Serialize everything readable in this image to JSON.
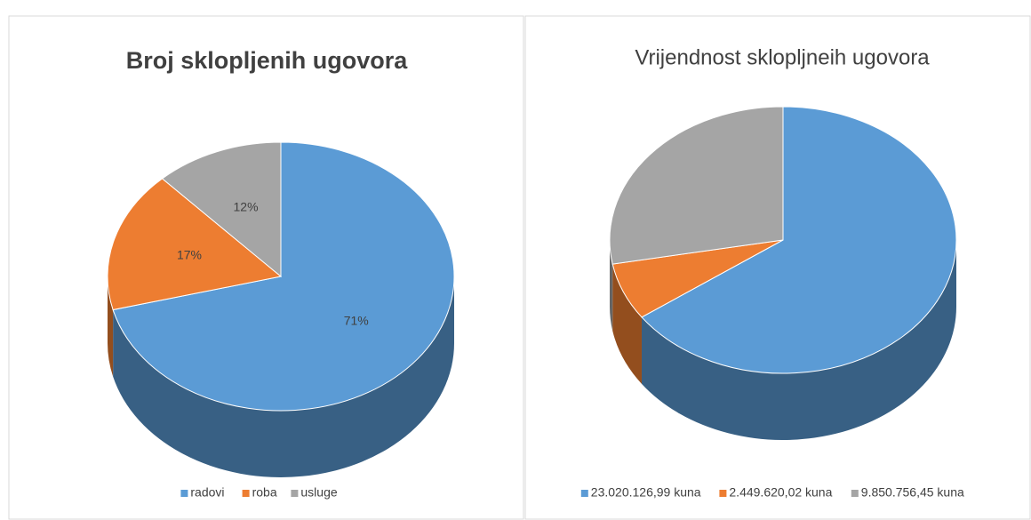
{
  "chart_data": [
    {
      "type": "pie",
      "title": "Broj sklopljenih ugovora",
      "categories": [
        "radovi",
        "roba",
        "usluge"
      ],
      "values": [
        71,
        17,
        12
      ],
      "value_labels": [
        "71%",
        "17%",
        "12%"
      ],
      "colors": [
        "#5b9bd5",
        "#ed7d31",
        "#a5a5a5"
      ],
      "legend": "bottom",
      "title_bold": true
    },
    {
      "type": "pie",
      "title": "Vrijendnost sklopljneih ugovora",
      "categories": [
        "23.020.126,99 kuna",
        "2.449.620,02 kuna",
        "9.850.756,45 kuna"
      ],
      "values": [
        23020126.99,
        2449620.02,
        9850756.45
      ],
      "colors": [
        "#5b9bd5",
        "#ed7d31",
        "#a5a5a5"
      ],
      "legend": "bottom",
      "title_bold": false
    }
  ]
}
